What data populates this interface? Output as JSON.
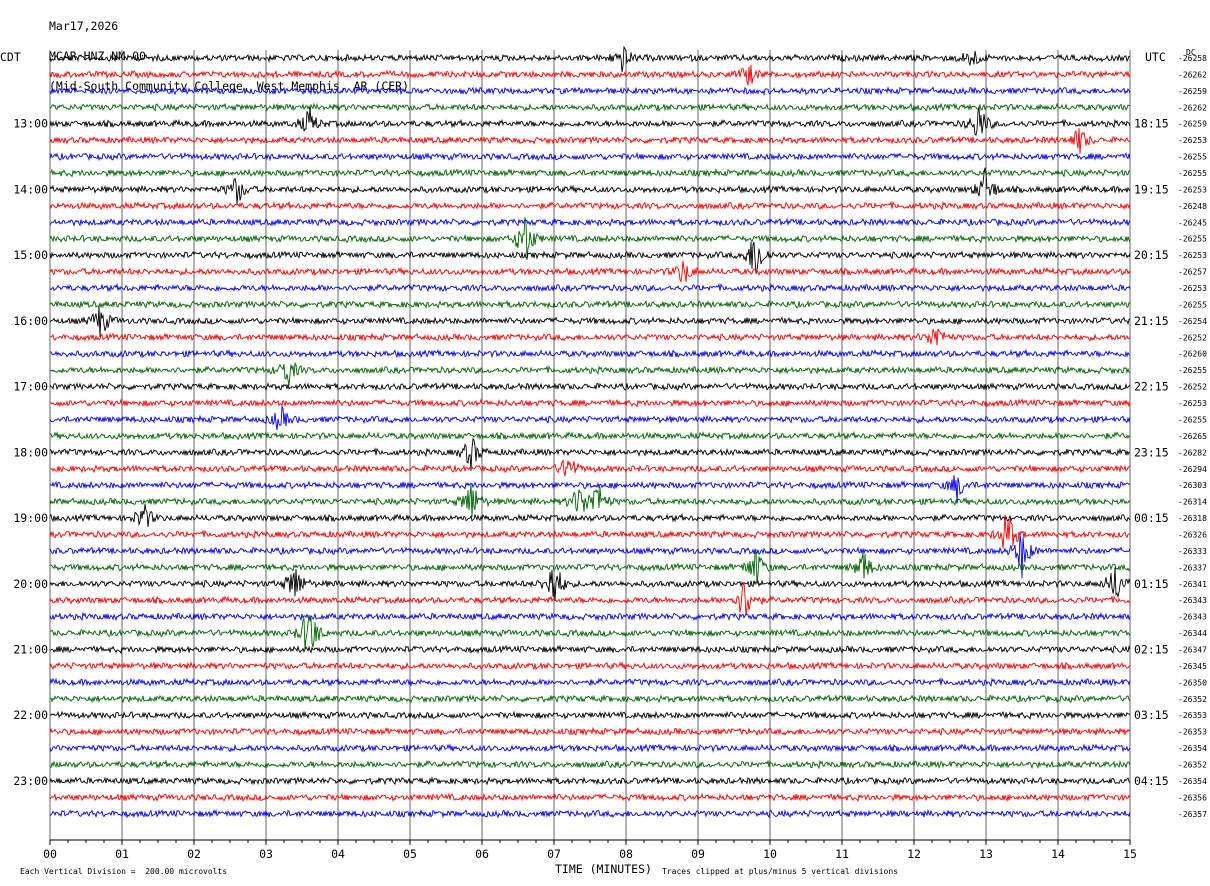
{
  "header": {
    "date": "Mar17,2026",
    "station": "MCAR HNZ NM 00",
    "location": "(Mid-South Community College, West Memphis, AR (CER)"
  },
  "left_tz": "CDT",
  "right_tz": "UTC",
  "dc_header": "DC",
  "footer": {
    "scale_note": "Each Vertical Division =  200.00 microvolts",
    "xlabel": "TIME (MINUTES)",
    "clip_note": "Traces clipped at plus/minus 5 vertical divisions"
  },
  "colors": {
    "trace_cycle": [
      "#000000",
      "#ff0000",
      "#0000ff",
      "#006400"
    ],
    "grid": "#000000",
    "background": "#ffffff"
  },
  "chart_data": {
    "type": "line",
    "title": "MCAR HNZ NM 00",
    "xlabel": "TIME (MINUTES)",
    "xlim": [
      0,
      15
    ],
    "x_ticks": [
      "00",
      "01",
      "02",
      "03",
      "04",
      "05",
      "06",
      "07",
      "08",
      "09",
      "10",
      "11",
      "12",
      "13",
      "14",
      "15"
    ],
    "left_time_labels": [
      "13:00",
      "14:00",
      "15:00",
      "16:00",
      "17:00",
      "18:00",
      "19:00",
      "20:00",
      "21:00",
      "22:00",
      "23:00"
    ],
    "right_time_labels": [
      "18:15",
      "19:15",
      "20:15",
      "21:15",
      "22:15",
      "23:15",
      "00:15",
      "01:15",
      "02:15",
      "03:15",
      "04:15"
    ],
    "dc_offsets": [
      -26258,
      -26262,
      -26259,
      -26262,
      -26259,
      -26253,
      -26255,
      -26255,
      -26253,
      -26248,
      -26245,
      -26255,
      -26253,
      -26257,
      -26253,
      -26255,
      -26254,
      -26252,
      -26260,
      -26255,
      -26252,
      -26253,
      -26255,
      -26265,
      -26282,
      -26294,
      -26303,
      -26314,
      -26318,
      -26326,
      -26333,
      -26337,
      -26341,
      -26343,
      -26343,
      -26344,
      -26347,
      -26345,
      -26350,
      -26352,
      -26353,
      -26353,
      -26354,
      -26352,
      -26354,
      -26356,
      -26357
    ],
    "events": [
      {
        "trace": 0,
        "minute": 7.95,
        "amp": 14
      },
      {
        "trace": 0,
        "minute": 12.8,
        "amp": 12
      },
      {
        "trace": 1,
        "minute": 9.7,
        "amp": 12
      },
      {
        "trace": 4,
        "minute": 3.6,
        "amp": 16
      },
      {
        "trace": 4,
        "minute": 12.9,
        "amp": 22
      },
      {
        "trace": 5,
        "minute": 14.3,
        "amp": 14
      },
      {
        "trace": 8,
        "minute": 2.6,
        "amp": 16
      },
      {
        "trace": 8,
        "minute": 13.0,
        "amp": 24
      },
      {
        "trace": 11,
        "minute": 6.6,
        "amp": 30
      },
      {
        "trace": 12,
        "minute": 9.8,
        "amp": 30
      },
      {
        "trace": 13,
        "minute": 8.8,
        "amp": 14
      },
      {
        "trace": 16,
        "minute": 0.7,
        "amp": 18
      },
      {
        "trace": 17,
        "minute": 12.3,
        "amp": 16
      },
      {
        "trace": 19,
        "minute": 3.3,
        "amp": 18
      },
      {
        "trace": 22,
        "minute": 3.2,
        "amp": 14
      },
      {
        "trace": 24,
        "minute": 5.85,
        "amp": 18
      },
      {
        "trace": 25,
        "minute": 7.2,
        "amp": 16
      },
      {
        "trace": 26,
        "minute": 12.6,
        "amp": 16
      },
      {
        "trace": 27,
        "minute": 5.85,
        "amp": 24
      },
      {
        "trace": 27,
        "minute": 7.35,
        "amp": 18
      },
      {
        "trace": 27,
        "minute": 7.6,
        "amp": 22
      },
      {
        "trace": 28,
        "minute": 1.3,
        "amp": 16
      },
      {
        "trace": 29,
        "minute": 13.3,
        "amp": 28
      },
      {
        "trace": 30,
        "minute": 13.5,
        "amp": 26
      },
      {
        "trace": 31,
        "minute": 9.8,
        "amp": 22
      },
      {
        "trace": 31,
        "minute": 11.3,
        "amp": 18
      },
      {
        "trace": 32,
        "minute": 3.4,
        "amp": 22
      },
      {
        "trace": 32,
        "minute": 7.0,
        "amp": 30
      },
      {
        "trace": 32,
        "minute": 14.8,
        "amp": 22
      },
      {
        "trace": 33,
        "minute": 9.65,
        "amp": 26
      },
      {
        "trace": 35,
        "minute": 3.6,
        "amp": 34
      }
    ]
  }
}
